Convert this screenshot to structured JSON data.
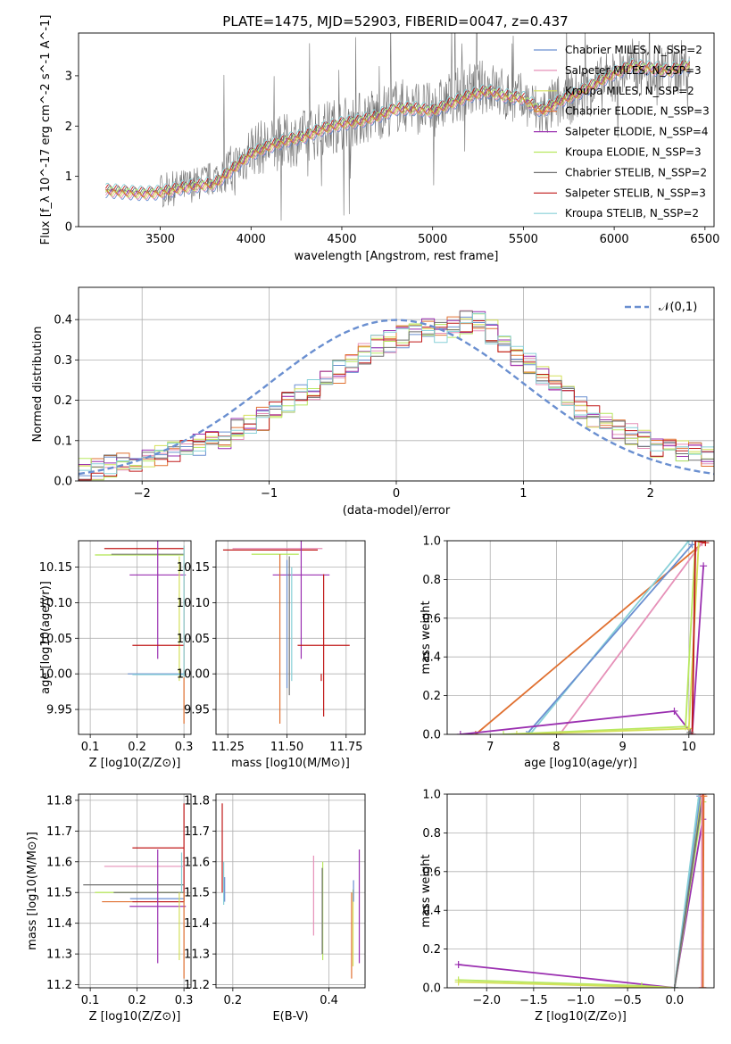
{
  "colors": {
    "Chabrier MILES": "#6a8fd0",
    "Salpeter MILES": "#e690b8",
    "Kroupa MILES": "#d4e05a",
    "Chabrier ELODIE": "#e07030",
    "Salpeter ELODIE": "#9a2fb0",
    "Kroupa ELODIE": "#b8e860",
    "Chabrier STELIB": "#707070",
    "Salpeter STELIB": "#c01818",
    "Kroupa STELIB": "#88d0d8",
    "normal": "#6a8fd0",
    "grid": "#b0b0b0"
  },
  "chart_data": [
    {
      "id": "spectrum",
      "type": "line",
      "title": "PLATE=1475, MJD=52903, FIBERID=0047, z=0.437",
      "xlabel": "wavelength [Angstrom, rest frame]",
      "ylabel": "Flux [f_λ 10^-17 erg cm^-2 s^-1 A^-1]",
      "xlim": [
        3050,
        6550
      ],
      "ylim": [
        0,
        3.85
      ],
      "xticks": [
        3500,
        4000,
        4500,
        5000,
        5500,
        6000,
        6500
      ],
      "yticks": [
        0,
        1,
        2,
        3
      ],
      "grid": false,
      "legend_position": "right",
      "legend": [
        "Chabrier MILES, N_SSP=2",
        "Salpeter MILES, N_SSP=3",
        "Kroupa MILES, N_SSP=2",
        "Chabrier ELODIE, N_SSP=3",
        "Salpeter ELODIE, N_SSP=4",
        "Kroupa ELODIE, N_SSP=3",
        "Chabrier STELIB, N_SSP=2",
        "Salpeter STELIB, N_SSP=3",
        "Kroupa STELIB, N_SSP=2"
      ],
      "data_wavelength": [
        3200,
        3400,
        3500,
        3700,
        3900,
        4000,
        4100,
        4200,
        4300,
        4400,
        4500,
        4600,
        4700,
        4800,
        4900,
        5000,
        5100,
        5200,
        5300,
        5400,
        5500,
        5600,
        5700,
        5800,
        5900,
        6000,
        6100,
        6200,
        6300,
        6400
      ],
      "data_flux": [
        0.72,
        0.68,
        0.7,
        0.85,
        1.1,
        1.55,
        1.6,
        1.7,
        1.8,
        1.95,
        2.05,
        2.15,
        2.25,
        2.4,
        2.4,
        2.3,
        2.55,
        2.7,
        2.8,
        2.6,
        2.5,
        2.25,
        2.5,
        2.6,
        2.8,
        3.0,
        3.2,
        3.1,
        3.1,
        3.2
      ],
      "model_wavelength": [
        3200,
        3400,
        3500,
        3600,
        3700,
        3800,
        3900,
        4000,
        4100,
        4200,
        4300,
        4400,
        4500,
        4600,
        4700,
        4800,
        4900,
        5000,
        5100,
        5200,
        5300,
        5400,
        5500,
        5600,
        5700,
        5800,
        5900,
        6000,
        6100,
        6200,
        6300,
        6400
      ],
      "model_flux": [
        0.72,
        0.66,
        0.68,
        0.76,
        0.82,
        0.85,
        1.15,
        1.45,
        1.6,
        1.72,
        1.8,
        1.95,
        2.05,
        2.1,
        2.2,
        2.35,
        2.35,
        2.3,
        2.45,
        2.6,
        2.7,
        2.6,
        2.55,
        2.3,
        2.5,
        2.65,
        2.85,
        3.05,
        3.2,
        3.15,
        3.1,
        3.2
      ]
    },
    {
      "id": "residuals",
      "type": "line",
      "xlabel": "(data-model)/error",
      "ylabel": "Normed distribution",
      "xlim": [
        -2.5,
        2.5
      ],
      "ylim": [
        0,
        0.48
      ],
      "xticks": [
        -2,
        -1,
        0,
        1,
        2
      ],
      "yticks": [
        0,
        0.1,
        0.2,
        0.3,
        0.4
      ],
      "grid": true,
      "legend_position": "top-right",
      "normal_label": "𝒩(0,1)",
      "histogram_bin_centers": [
        -2.4,
        -2.2,
        -2.0,
        -1.8,
        -1.6,
        -1.4,
        -1.2,
        -1.0,
        -0.8,
        -0.6,
        -0.4,
        -0.2,
        0.0,
        0.2,
        0.4,
        0.6,
        0.8,
        1.0,
        1.2,
        1.4,
        1.6,
        1.8,
        2.0,
        2.2,
        2.4
      ],
      "histogram_values": [
        0.03,
        0.04,
        0.05,
        0.07,
        0.09,
        0.1,
        0.14,
        0.16,
        0.2,
        0.24,
        0.28,
        0.33,
        0.35,
        0.38,
        0.37,
        0.4,
        0.36,
        0.3,
        0.25,
        0.19,
        0.15,
        0.12,
        0.09,
        0.08,
        0.06
      ]
    },
    {
      "id": "age-vs-z",
      "type": "scatter",
      "xlabel": "Z [log10(Z/Z⊙)]",
      "ylabel": "age [log10(age/yr)]",
      "xlim": [
        0.075,
        0.315
      ],
      "ylim": [
        9.915,
        10.187
      ],
      "xticks": [
        0.1,
        0.2,
        0.3
      ],
      "yticks": [
        9.95,
        10.0,
        10.05,
        10.1,
        10.15
      ],
      "grid": true
    },
    {
      "id": "age-vs-mass",
      "type": "scatter",
      "xlabel": "mass [log10(M/M⊙)]",
      "ylabel": "",
      "xlim": [
        11.2,
        11.83
      ],
      "ylim": [
        9.915,
        10.187
      ],
      "xticks": [
        11.25,
        11.5,
        11.75
      ],
      "yticks": [
        9.95,
        10.0,
        10.05,
        10.1,
        10.15
      ],
      "grid": true
    },
    {
      "id": "weight-vs-age",
      "type": "line",
      "xlabel": "age [log10(age/yr)]",
      "ylabel": "mass weight",
      "xlim": [
        6.35,
        10.38
      ],
      "ylim": [
        0,
        1.0
      ],
      "xticks": [
        7,
        8,
        9,
        10
      ],
      "yticks": [
        0.0,
        0.2,
        0.4,
        0.6,
        0.8,
        1.0
      ],
      "grid": true
    },
    {
      "id": "mass-vs-z",
      "type": "scatter",
      "xlabel": "Z [log10(Z/Z⊙)]",
      "ylabel": "mass [log10(M/M⊙)]",
      "xlim": [
        0.075,
        0.315
      ],
      "ylim": [
        11.19,
        11.82
      ],
      "xticks": [
        0.1,
        0.2,
        0.3
      ],
      "yticks": [
        11.2,
        11.3,
        11.4,
        11.5,
        11.6,
        11.7,
        11.8
      ],
      "grid": true
    },
    {
      "id": "mass-vs-ebv",
      "type": "scatter",
      "xlabel": "E(B-V)",
      "ylabel": "",
      "xlim": [
        0.165,
        0.475
      ],
      "ylim": [
        11.19,
        11.82
      ],
      "xticks": [
        0.2,
        0.4
      ],
      "yticks": [
        11.2,
        11.3,
        11.4,
        11.5,
        11.6,
        11.7,
        11.8
      ],
      "grid": true
    },
    {
      "id": "weight-vs-z",
      "type": "line",
      "xlabel": "Z [log10(Z/Z⊙)]",
      "ylabel": "mass weight",
      "xlim": [
        -2.42,
        0.42
      ],
      "ylim": [
        0,
        1.0
      ],
      "xticks": [
        -2.0,
        -1.5,
        -1.0,
        -0.5,
        0.0
      ],
      "yticks": [
        0.0,
        0.2,
        0.4,
        0.6,
        0.8,
        1.0
      ],
      "grid": true
    }
  ]
}
